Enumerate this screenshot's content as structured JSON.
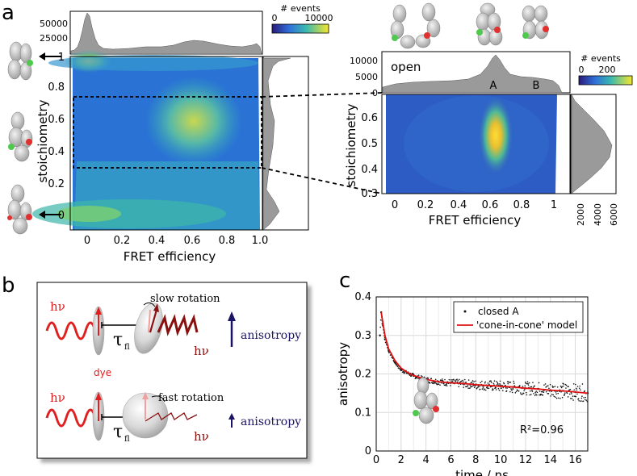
{
  "panels": {
    "a": "a",
    "b": "b",
    "c": "c"
  },
  "colors": {
    "hist_fill": "#9a9a9a",
    "fit_red": "#e01010",
    "wave_red": "#e02020",
    "wave_dark": "#8a1010",
    "anisotropy_blue": "#1b1464"
  },
  "panel_a": {
    "colorbar": {
      "title": "# events",
      "min": "0",
      "max": "10000"
    },
    "top_hist_ticks": [
      "50000",
      "25000"
    ],
    "x_axis": {
      "label": "FRET efficiency",
      "ticks": [
        "0",
        "0.2",
        "0.4",
        "0.6",
        "0.8",
        "1.0"
      ]
    },
    "y_axis": {
      "label": "stoichiometry",
      "ticks": [
        "1",
        "0.8",
        "0.6",
        "0.4",
        "0.2",
        "0"
      ]
    }
  },
  "panel_a_zoom": {
    "open_label": "open",
    "peak_labels": [
      "A",
      "B"
    ],
    "top_hist_ticks": [
      "10000",
      "5000",
      "0"
    ],
    "colorbar": {
      "title": "# events",
      "min": "0",
      "max": "200"
    },
    "x_axis": {
      "label": "FRET efficiency",
      "ticks": [
        "0",
        "0.2",
        "0.4",
        "0.6",
        "0.8",
        "1"
      ]
    },
    "y_axis": {
      "label": "stoichiometry",
      "ticks": [
        "0.6",
        "0.5",
        "0.4",
        "0.3"
      ]
    },
    "side_hist_ticks": [
      "2000",
      "4000",
      "6000"
    ]
  },
  "panel_b": {
    "hv": "hν",
    "tau": "τ",
    "tau_sub": "fl",
    "slow_rotation": "slow rotation",
    "fast_rotation": "fast rotation",
    "anisotropy": "anisotropy",
    "dye": "dye"
  },
  "chart_data": {
    "type": "scatter",
    "title": "",
    "xlabel": "time / ns",
    "ylabel": "anisotropy",
    "xlim": [
      0,
      17
    ],
    "ylim": [
      0,
      0.4
    ],
    "x_ticks": [
      0,
      2,
      4,
      6,
      8,
      10,
      12,
      14,
      16
    ],
    "y_ticks": [
      0,
      0.1,
      0.2,
      0.3,
      0.4
    ],
    "x_tick_labels": [
      "0",
      "2",
      "4",
      "6",
      "8",
      "10",
      "12",
      "14",
      "16"
    ],
    "y_tick_labels": [
      "0",
      "0.1",
      "0.2",
      "0.3",
      "0.4"
    ],
    "legend": [
      "closed A",
      "'cone-in-cone' model"
    ],
    "annotation": "R²=0.96",
    "grid": true,
    "series": [
      {
        "name": "closed A",
        "kind": "points",
        "x": [
          0.3,
          0.4,
          0.5,
          0.7,
          1.0,
          1.5,
          2,
          3,
          4,
          5,
          6,
          7,
          8,
          9,
          10,
          11,
          12,
          13,
          14,
          15,
          16,
          17
        ],
        "y": [
          0.3,
          0.36,
          0.33,
          0.29,
          0.26,
          0.23,
          0.21,
          0.195,
          0.185,
          0.18,
          0.177,
          0.175,
          0.172,
          0.17,
          0.168,
          0.166,
          0.163,
          0.161,
          0.158,
          0.156,
          0.153,
          0.15
        ]
      },
      {
        "name": "'cone-in-cone' model",
        "kind": "line",
        "x": [
          0.4,
          0.5,
          0.7,
          1.0,
          1.5,
          2,
          2.5,
          3,
          4,
          5,
          6,
          7,
          8,
          9,
          10,
          11,
          12,
          13,
          14,
          15,
          16,
          17
        ],
        "y": [
          0.36,
          0.34,
          0.3,
          0.265,
          0.235,
          0.215,
          0.204,
          0.196,
          0.186,
          0.18,
          0.177,
          0.175,
          0.172,
          0.17,
          0.168,
          0.166,
          0.163,
          0.161,
          0.158,
          0.156,
          0.153,
          0.15
        ]
      }
    ]
  }
}
